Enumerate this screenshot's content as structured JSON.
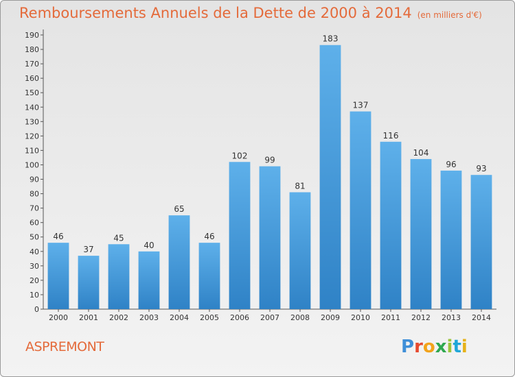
{
  "header": {
    "title": "Remboursements Annuels de la Dette de 2000 à 2014",
    "subtitle": "(en milliers d'€)"
  },
  "footer": {
    "commune": "ASPREMONT",
    "brand_letters": [
      "P",
      "r",
      "o",
      "x",
      "i",
      "t",
      "i"
    ],
    "brand_colors": [
      "#3f8fd8",
      "#e64a2f",
      "#f2a31b",
      "#2fa84f",
      "#9bc53d",
      "#1fa7d8",
      "#e6b21a"
    ]
  },
  "chart_data": {
    "type": "bar",
    "categories": [
      "2000",
      "2001",
      "2002",
      "2003",
      "2004",
      "2005",
      "2006",
      "2007",
      "2008",
      "2009",
      "2010",
      "2011",
      "2012",
      "2013",
      "2014"
    ],
    "values": [
      46,
      37,
      45,
      40,
      65,
      46,
      102,
      99,
      81,
      183,
      137,
      116,
      104,
      96,
      93
    ],
    "ylim": [
      0,
      190
    ],
    "yticks": [
      0,
      10,
      20,
      30,
      40,
      50,
      60,
      70,
      80,
      90,
      100,
      110,
      120,
      130,
      140,
      150,
      160,
      170,
      180,
      190
    ],
    "grid": false,
    "bar_color_top": "#5eb0ea",
    "bar_color_bottom": "#2f82c6"
  }
}
